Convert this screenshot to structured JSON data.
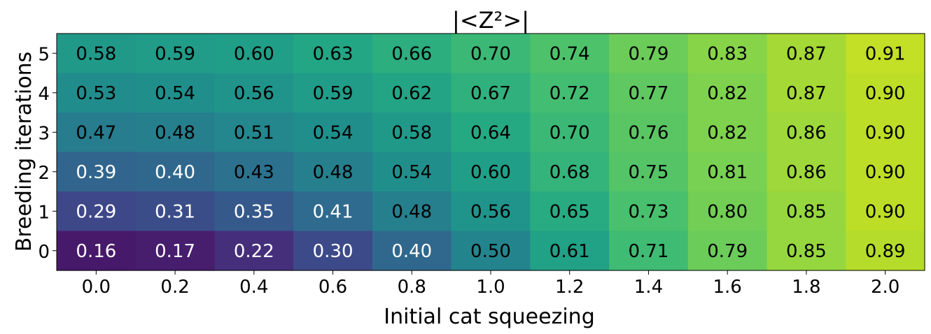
{
  "chart_data": {
    "type": "heatmap",
    "title": "|<Z²>|",
    "xlabel": "Initial cat squeezing",
    "ylabel": "Breeding iterations",
    "x": [
      "0.0",
      "0.2",
      "0.4",
      "0.6",
      "0.8",
      "1.0",
      "1.2",
      "1.4",
      "1.6",
      "1.8",
      "2.0"
    ],
    "y": [
      "5",
      "4",
      "3",
      "2",
      "1",
      "0"
    ],
    "values": [
      [
        0.58,
        0.59,
        0.6,
        0.63,
        0.66,
        0.7,
        0.74,
        0.79,
        0.83,
        0.87,
        0.91
      ],
      [
        0.53,
        0.54,
        0.56,
        0.59,
        0.62,
        0.67,
        0.72,
        0.77,
        0.82,
        0.87,
        0.9
      ],
      [
        0.47,
        0.48,
        0.51,
        0.54,
        0.58,
        0.64,
        0.7,
        0.76,
        0.82,
        0.86,
        0.9
      ],
      [
        0.39,
        0.4,
        0.43,
        0.48,
        0.54,
        0.6,
        0.68,
        0.75,
        0.81,
        0.86,
        0.9
      ],
      [
        0.29,
        0.31,
        0.35,
        0.41,
        0.48,
        0.56,
        0.65,
        0.73,
        0.8,
        0.85,
        0.9
      ],
      [
        0.16,
        0.17,
        0.22,
        0.3,
        0.4,
        0.5,
        0.61,
        0.71,
        0.79,
        0.85,
        0.89
      ]
    ],
    "colormap": "viridis",
    "value_range": [
      0.16,
      0.91
    ],
    "grid": false,
    "legend": "none"
  }
}
